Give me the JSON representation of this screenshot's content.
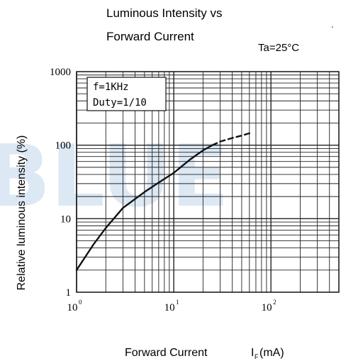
{
  "watermark": "BLUE",
  "chart_data": {
    "type": "line",
    "title_line1": "Luminous Intensity vs",
    "title_line2": "Forward Current",
    "condition": "Ta=25°C",
    "xlabel": "Forward Current",
    "xlabel_symbol": "I",
    "xlabel_sub": "F",
    "xlabel_unit": "(mA)",
    "ylabel": "Relative luminous intensity   (%)",
    "xscale": "log",
    "yscale": "log",
    "xlim": [
      1,
      500
    ],
    "ylim": [
      1,
      1000
    ],
    "grid": true,
    "legend_lines": [
      "f=1KHz",
      "Duty=1/10"
    ],
    "legend_position": "top-left",
    "x_ticks": [
      {
        "value": 1,
        "base": "10",
        "exp": "0"
      },
      {
        "value": 10,
        "base": "10",
        "exp": "1"
      },
      {
        "value": 100,
        "base": "10",
        "exp": "2"
      }
    ],
    "y_ticks": [
      {
        "value": 1,
        "label": "1"
      },
      {
        "value": 10,
        "label": "10"
      },
      {
        "value": 100,
        "label": "100"
      },
      {
        "value": 1000,
        "label": "1000"
      }
    ],
    "series": [
      {
        "style": "solid",
        "x": [
          1,
          1.5,
          2,
          3,
          5,
          7,
          10,
          15,
          20,
          25
        ],
        "y": [
          2,
          4.5,
          7.5,
          14,
          23,
          31,
          42,
          65,
          85,
          100
        ]
      },
      {
        "style": "dashed",
        "x": [
          25,
          30,
          40,
          50,
          60
        ],
        "y": [
          100,
          112,
          125,
          135,
          145
        ]
      }
    ],
    "colors": {
      "line": "#111111",
      "grid": "#222222",
      "watermark": "#dce8f4"
    }
  }
}
